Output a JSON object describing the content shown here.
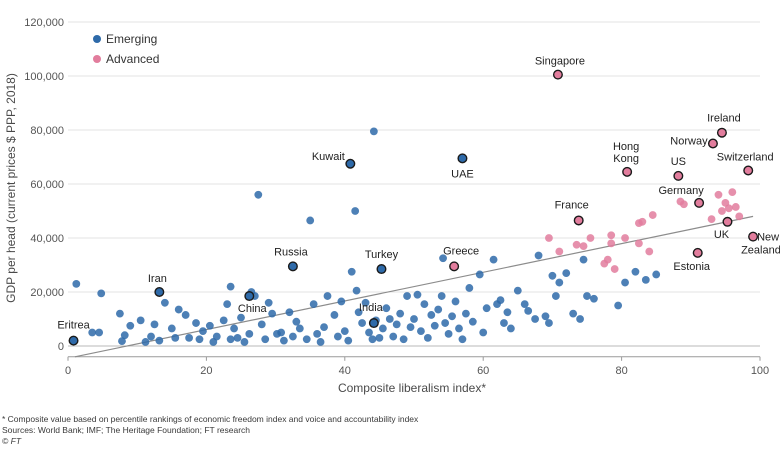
{
  "chart_data": {
    "type": "scatter",
    "title": "",
    "xlabel": "Composite liberalism index*",
    "ylabel": "GDP per head (current prices $ PPP, 2018)",
    "xlim": [
      0,
      100
    ],
    "ylim": [
      -4000,
      122000
    ],
    "x_ticks": [
      0,
      20,
      40,
      60,
      80,
      100
    ],
    "x_tick_labels": [
      "0",
      "20",
      "40",
      "60",
      "80",
      "100"
    ],
    "y_ticks": [
      0,
      20000,
      40000,
      60000,
      80000,
      100000,
      120000
    ],
    "y_tick_labels": [
      "0",
      "20,000",
      "40,000",
      "60,000",
      "80,000",
      "100,000",
      "120,000"
    ],
    "grid": "horizontal",
    "legend_position": "top-left",
    "trend_line": {
      "x": [
        1,
        99
      ],
      "y": [
        -4000,
        48000
      ]
    },
    "series": [
      {
        "name": "Emerging",
        "color": "#2e6aa9",
        "points": [
          [
            1.2,
            23000
          ],
          [
            3.5,
            5000
          ],
          [
            4.8,
            19500
          ],
          [
            4.5,
            5000
          ],
          [
            7.5,
            12000
          ],
          [
            7.8,
            1800
          ],
          [
            8.2,
            4000
          ],
          [
            9,
            7500
          ],
          [
            10.5,
            9500
          ],
          [
            11.2,
            1500
          ],
          [
            12,
            3500
          ],
          [
            12.5,
            8000
          ],
          [
            13.2,
            2000
          ],
          [
            14,
            16000
          ],
          [
            15,
            6500
          ],
          [
            15.5,
            3000
          ],
          [
            16,
            13500
          ],
          [
            17,
            11500
          ],
          [
            17.5,
            3000
          ],
          [
            18.5,
            8500
          ],
          [
            19,
            2500
          ],
          [
            19.5,
            5500
          ],
          [
            20.5,
            7500
          ],
          [
            21,
            1500
          ],
          [
            21.5,
            3500
          ],
          [
            22.5,
            9500
          ],
          [
            23,
            15500
          ],
          [
            23.5,
            2500
          ],
          [
            23.5,
            22000
          ],
          [
            24,
            6500
          ],
          [
            24.5,
            3000
          ],
          [
            25,
            10500
          ],
          [
            25.5,
            1500
          ],
          [
            26.2,
            4500
          ],
          [
            26.5,
            20000
          ],
          [
            27,
            18500
          ],
          [
            27.5,
            56000
          ],
          [
            28,
            8000
          ],
          [
            28.5,
            2500
          ],
          [
            29,
            16000
          ],
          [
            29.5,
            12000
          ],
          [
            30.2,
            4500
          ],
          [
            30.8,
            5000
          ],
          [
            31.2,
            2000
          ],
          [
            32,
            12500
          ],
          [
            32.5,
            3500
          ],
          [
            33,
            9000
          ],
          [
            33.5,
            6500
          ],
          [
            34.5,
            2500
          ],
          [
            35,
            46500
          ],
          [
            35.5,
            15500
          ],
          [
            36,
            4500
          ],
          [
            36.5,
            1500
          ],
          [
            37,
            7000
          ],
          [
            37.5,
            18500
          ],
          [
            38.5,
            11500
          ],
          [
            39,
            3500
          ],
          [
            39.5,
            16500
          ],
          [
            40,
            5500
          ],
          [
            40.5,
            2000
          ],
          [
            41,
            27500
          ],
          [
            41.5,
            50000
          ],
          [
            41.7,
            20500
          ],
          [
            42,
            12500
          ],
          [
            42.5,
            8500
          ],
          [
            43,
            16000
          ],
          [
            43.5,
            5000
          ],
          [
            44,
            2500
          ],
          [
            44.2,
            79500
          ],
          [
            44.5,
            9500
          ],
          [
            45,
            3000
          ],
          [
            45.5,
            6500
          ],
          [
            46,
            14000
          ],
          [
            46.5,
            10000
          ],
          [
            47,
            3500
          ],
          [
            47.5,
            8000
          ],
          [
            48,
            12000
          ],
          [
            48.5,
            2500
          ],
          [
            49,
            18500
          ],
          [
            49.5,
            7000
          ],
          [
            50,
            10000
          ],
          [
            50.5,
            19000
          ],
          [
            51,
            5500
          ],
          [
            51.5,
            15500
          ],
          [
            52,
            3000
          ],
          [
            52.5,
            11500
          ],
          [
            53,
            7500
          ],
          [
            53.5,
            13500
          ],
          [
            54,
            18500
          ],
          [
            54.5,
            8500
          ],
          [
            54.2,
            32500
          ],
          [
            55,
            4500
          ],
          [
            55.5,
            11000
          ],
          [
            56,
            16500
          ],
          [
            56.5,
            6500
          ],
          [
            57,
            2500
          ],
          [
            57.5,
            12000
          ],
          [
            58,
            21500
          ],
          [
            58.5,
            9000
          ],
          [
            59.5,
            26500
          ],
          [
            60,
            5000
          ],
          [
            60.5,
            14000
          ],
          [
            61.5,
            32000
          ],
          [
            62,
            15500
          ],
          [
            62.5,
            17000
          ],
          [
            63,
            8500
          ],
          [
            63.5,
            12500
          ],
          [
            64,
            6500
          ],
          [
            65,
            20500
          ],
          [
            66,
            15500
          ],
          [
            66.5,
            13000
          ],
          [
            67.5,
            10000
          ],
          [
            68,
            33500
          ],
          [
            69,
            11000
          ],
          [
            69.5,
            8500
          ],
          [
            70,
            26000
          ],
          [
            70.5,
            18500
          ],
          [
            71,
            23500
          ],
          [
            72,
            27000
          ],
          [
            73,
            12000
          ],
          [
            74,
            10000
          ],
          [
            74.5,
            32000
          ],
          [
            75,
            18500
          ],
          [
            76,
            17500
          ],
          [
            79.5,
            15000
          ],
          [
            80.5,
            23500
          ],
          [
            82,
            27500
          ],
          [
            83.5,
            24500
          ],
          [
            85,
            26500
          ]
        ]
      },
      {
        "name": "Advanced",
        "color": "#e27d9d",
        "points": [
          [
            69.5,
            40000
          ],
          [
            71,
            35000
          ],
          [
            73.5,
            37500
          ],
          [
            74.5,
            37000
          ],
          [
            75.5,
            40000
          ],
          [
            77.5,
            30500
          ],
          [
            78,
            32000
          ],
          [
            78.5,
            38000
          ],
          [
            78.5,
            41000
          ],
          [
            79,
            28500
          ],
          [
            80.5,
            40000
          ],
          [
            82.5,
            45500
          ],
          [
            82.5,
            38000
          ],
          [
            83,
            46000
          ],
          [
            84,
            35000
          ],
          [
            84.5,
            48500
          ],
          [
            88.5,
            53500
          ],
          [
            89,
            52500
          ],
          [
            93,
            47000
          ],
          [
            94,
            56000
          ],
          [
            94.5,
            50000
          ],
          [
            95,
            53000
          ],
          [
            95.5,
            51000
          ],
          [
            96,
            57000
          ],
          [
            96.5,
            51500
          ],
          [
            97,
            48000
          ]
        ]
      }
    ],
    "labeled_points": [
      {
        "label": "Eritrea",
        "x": 0.8,
        "y": 2000,
        "group": "Emerging"
      },
      {
        "label": "Iran",
        "x": 13.2,
        "y": 20000,
        "group": "Emerging"
      },
      {
        "label": "China",
        "x": 26.2,
        "y": 18500,
        "group": "Emerging"
      },
      {
        "label": "Russia",
        "x": 32.5,
        "y": 29500,
        "group": "Emerging"
      },
      {
        "label": "Kuwait",
        "x": 40.8,
        "y": 67500,
        "group": "Emerging"
      },
      {
        "label": "Turkey",
        "x": 45.3,
        "y": 28500,
        "group": "Emerging"
      },
      {
        "label": "India",
        "x": 44.2,
        "y": 8500,
        "group": "Emerging"
      },
      {
        "label": "UAE",
        "x": 57,
        "y": 69500,
        "group": "Emerging"
      },
      {
        "label": "Greece",
        "x": 55.8,
        "y": 29500,
        "group": "Advanced"
      },
      {
        "label": "Singapore",
        "x": 70.8,
        "y": 100500,
        "group": "Advanced"
      },
      {
        "label": "France",
        "x": 73.8,
        "y": 46500,
        "group": "Advanced"
      },
      {
        "label": "Hong Kong",
        "x": 80.8,
        "y": 64500,
        "group": "Advanced"
      },
      {
        "label": "US",
        "x": 88.2,
        "y": 63000,
        "group": "Advanced"
      },
      {
        "label": "Germany",
        "x": 91.2,
        "y": 53000,
        "group": "Advanced"
      },
      {
        "label": "Norway",
        "x": 93.2,
        "y": 75000,
        "group": "Advanced"
      },
      {
        "label": "Ireland",
        "x": 94.5,
        "y": 79000,
        "group": "Advanced"
      },
      {
        "label": "Switzerland",
        "x": 98.3,
        "y": 65000,
        "group": "Advanced"
      },
      {
        "label": "UK",
        "x": 95.3,
        "y": 46000,
        "group": "Advanced"
      },
      {
        "label": "Estonia",
        "x": 91,
        "y": 34500,
        "group": "Advanced"
      },
      {
        "label": "New Zealand",
        "x": 99,
        "y": 40500,
        "group": "Advanced"
      }
    ]
  },
  "legend": [
    {
      "name": "Emerging",
      "color": "#2e6aa9"
    },
    {
      "name": "Advanced",
      "color": "#e27d9d"
    }
  ],
  "footnote": "* Composite value based on percentile rankings of economic freedom index and voice and accountability index",
  "sources": "Sources: World Bank; IMF; The Heritage Foundation; FT research",
  "credit": "© FT"
}
